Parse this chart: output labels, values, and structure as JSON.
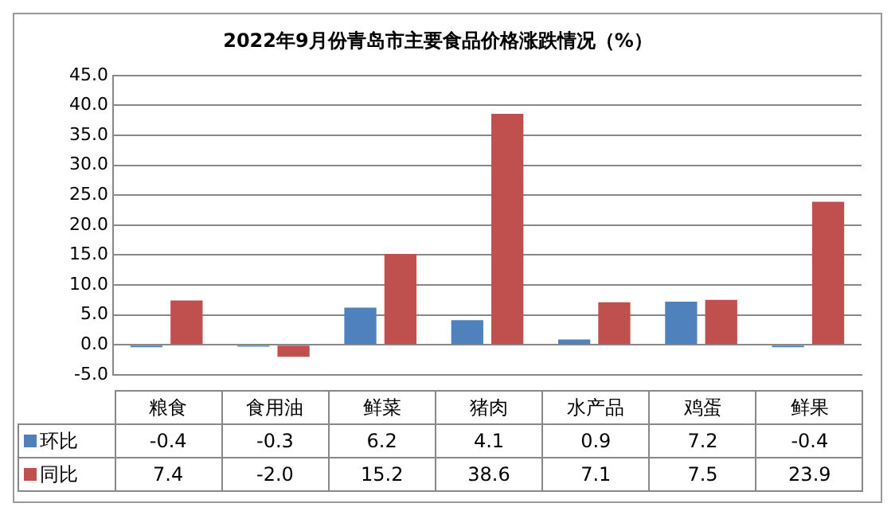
{
  "chart_data": {
    "type": "bar",
    "title": "2022年9月份青岛市主要食品价格涨跌情况（%）",
    "categories": [
      "粮食",
      "食用油",
      "鲜菜",
      "猪肉",
      "水产品",
      "鸡蛋",
      "鲜果"
    ],
    "series": [
      {
        "name": "环比",
        "color": "#4f81bd",
        "values": [
          -0.4,
          -0.3,
          6.2,
          4.1,
          0.9,
          7.2,
          -0.4
        ],
        "value_labels": [
          "-0.4",
          "-0.3",
          "6.2",
          "4.1",
          "0.9",
          "7.2",
          "-0.4"
        ]
      },
      {
        "name": "同比",
        "color": "#c0504d",
        "values": [
          7.4,
          -2.0,
          15.2,
          38.6,
          7.1,
          7.5,
          23.9
        ],
        "value_labels": [
          "7.4",
          "-2.0",
          "15.2",
          "38.6",
          "7.1",
          "7.5",
          "23.9"
        ]
      }
    ],
    "ylim": [
      -5,
      45
    ],
    "yticks": [
      {
        "value": -5,
        "label": "-5.0"
      },
      {
        "value": 0,
        "label": "0.0"
      },
      {
        "value": 5,
        "label": "5.0"
      },
      {
        "value": 10,
        "label": "10.0"
      },
      {
        "value": 15,
        "label": "15.0"
      },
      {
        "value": 20,
        "label": "20.0"
      },
      {
        "value": 25,
        "label": "25.0"
      },
      {
        "value": 30,
        "label": "30.0"
      },
      {
        "value": 35,
        "label": "35.0"
      },
      {
        "value": 40,
        "label": "40.0"
      },
      {
        "value": 45,
        "label": "45.0"
      }
    ],
    "grid": "y",
    "legend": "bottom"
  }
}
